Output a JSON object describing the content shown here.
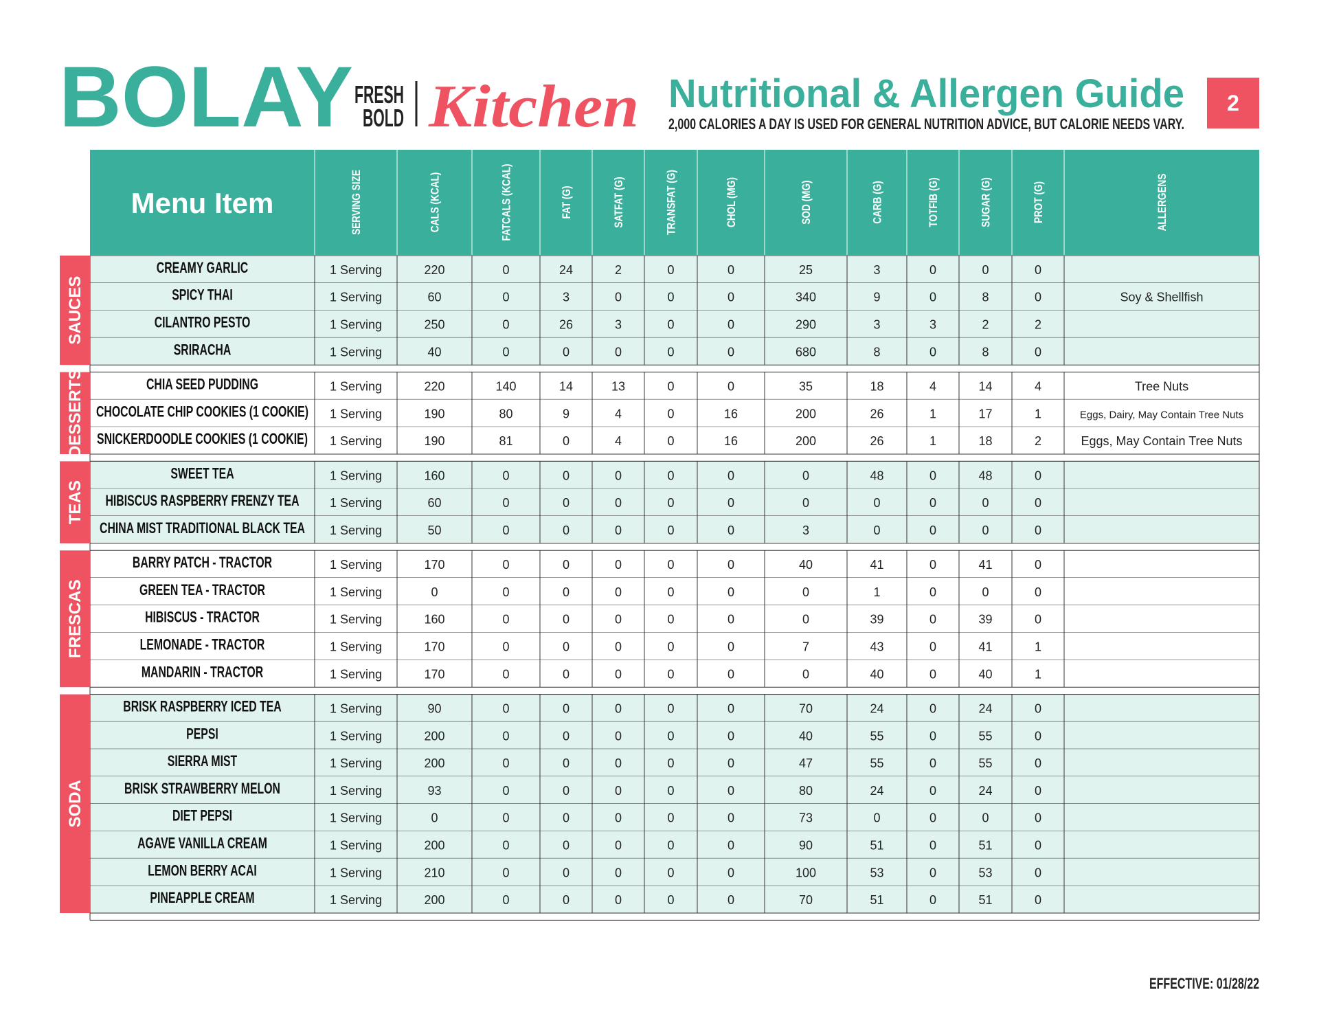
{
  "header": {
    "brand": "BOLAY",
    "tagline": [
      "FRESH",
      "BOLD"
    ],
    "kitchen": "Kitchen",
    "title": "Nutritional & Allergen Guide",
    "subtitle": "2,000 CALORIES A DAY IS USED FOR GENERAL NUTRITION ADVICE, BUT CALORIE NEEDS VARY.",
    "page": "2"
  },
  "table": {
    "columns": [
      "Menu Item",
      "SERVING SIZE",
      "CALS (KCAL)",
      "FATCALS (KCAL)",
      "FAT (G)",
      "SATFAT (G)",
      "TRANSFAT (G)",
      "CHOL (MG)",
      "SOD (MG)",
      "CARB (G)",
      "TOTFIB (G)",
      "SUGAR (G)",
      "PROT (G)",
      "ALLERGENS"
    ],
    "sections": [
      {
        "name": "SAUCES",
        "rows": [
          [
            "CREAMY GARLIC",
            "1 Serving",
            220,
            0,
            24,
            2,
            0,
            0,
            25,
            3,
            0,
            0,
            0,
            null
          ],
          [
            "SPICY THAI",
            "1 Serving",
            60,
            0,
            3,
            0,
            0,
            0,
            340,
            9,
            0,
            8,
            0,
            "Soy & Shellfish"
          ],
          [
            "CILANTRO PESTO",
            "1 Serving",
            250,
            0,
            26,
            3,
            0,
            0,
            290,
            3,
            3,
            2,
            2,
            null
          ],
          [
            "SRIRACHA",
            "1 Serving",
            40,
            0,
            0,
            0,
            0,
            0,
            680,
            8,
            0,
            8,
            0,
            null
          ]
        ]
      },
      {
        "name": "DESSERTS",
        "rows": [
          [
            "CHIA SEED PUDDING",
            "1 Serving",
            220,
            140,
            14,
            13,
            0,
            0,
            35,
            18,
            4,
            14,
            4,
            "Tree Nuts"
          ],
          [
            "CHOCOLATE CHIP COOKIES (1 COOKIE)",
            "1 Serving",
            190,
            80,
            9,
            4,
            0,
            16,
            200,
            26,
            1,
            17,
            1,
            "Eggs, Dairy, May Contain Tree Nuts"
          ],
          [
            "SNICKERDOODLE COOKIES (1 COOKIE)",
            "1 Serving",
            190,
            81,
            0,
            4,
            0,
            16,
            200,
            26,
            1,
            18,
            2,
            "Eggs, May Contain Tree Nuts"
          ]
        ]
      },
      {
        "name": "TEAS",
        "rows": [
          [
            "SWEET TEA",
            "1 Serving",
            160,
            0,
            0,
            0,
            0,
            0,
            0,
            48,
            0,
            48,
            0,
            null
          ],
          [
            "HIBISCUS RASPBERRY FRENZY TEA",
            "1 Serving",
            60,
            0,
            0,
            0,
            0,
            0,
            0,
            0,
            0,
            0,
            0,
            null
          ],
          [
            "CHINA MIST TRADITIONAL BLACK TEA",
            "1 Serving",
            50,
            0,
            0,
            0,
            0,
            0,
            3,
            0,
            0,
            0,
            0,
            null
          ]
        ]
      },
      {
        "name": "FRESCAS",
        "rows": [
          [
            "BARRY PATCH - TRACTOR",
            "1 Serving",
            170,
            0,
            0,
            0,
            0,
            0,
            40,
            41,
            0,
            41,
            0,
            null
          ],
          [
            "GREEN TEA - TRACTOR",
            "1 Serving",
            0,
            0,
            0,
            0,
            0,
            0,
            0,
            1,
            0,
            0,
            0,
            null
          ],
          [
            "HIBISCUS - TRACTOR",
            "1 Serving",
            160,
            0,
            0,
            0,
            0,
            0,
            0,
            39,
            0,
            39,
            0,
            null
          ],
          [
            "LEMONADE - TRACTOR",
            "1 Serving",
            170,
            0,
            0,
            0,
            0,
            0,
            7,
            43,
            0,
            41,
            1,
            null
          ],
          [
            "MANDARIN - TRACTOR",
            "1 Serving",
            170,
            0,
            0,
            0,
            0,
            0,
            0,
            40,
            0,
            40,
            1,
            null
          ]
        ]
      },
      {
        "name": "SODA",
        "rows": [
          [
            "BRISK RASPBERRY ICED TEA",
            "1 Serving",
            90,
            0,
            0,
            0,
            0,
            0,
            70,
            24,
            0,
            24,
            0,
            null
          ],
          [
            "PEPSI",
            "1 Serving",
            200,
            0,
            0,
            0,
            0,
            0,
            40,
            55,
            0,
            55,
            0,
            null
          ],
          [
            "SIERRA MIST",
            "1 Serving",
            200,
            0,
            0,
            0,
            0,
            0,
            47,
            55,
            0,
            55,
            0,
            null
          ],
          [
            "BRISK STRAWBERRY MELON",
            "1 Serving",
            93,
            0,
            0,
            0,
            0,
            0,
            80,
            24,
            0,
            24,
            0,
            null
          ],
          [
            "DIET PEPSI",
            "1 Serving",
            0,
            0,
            0,
            0,
            0,
            0,
            73,
            0,
            0,
            0,
            0,
            null
          ],
          [
            "AGAVE VANILLA CREAM",
            "1 Serving",
            200,
            0,
            0,
            0,
            0,
            0,
            90,
            51,
            0,
            51,
            0,
            null
          ],
          [
            "LEMON BERRY ACAI",
            "1 Serving",
            210,
            0,
            0,
            0,
            0,
            0,
            100,
            53,
            0,
            53,
            0,
            null
          ],
          [
            "PINEAPPLE CREAM",
            "1 Serving",
            200,
            0,
            0,
            0,
            0,
            0,
            70,
            51,
            0,
            51,
            0,
            null
          ]
        ]
      }
    ]
  },
  "footer": {
    "effective": "EFFECTIVE: 01/28/22"
  }
}
